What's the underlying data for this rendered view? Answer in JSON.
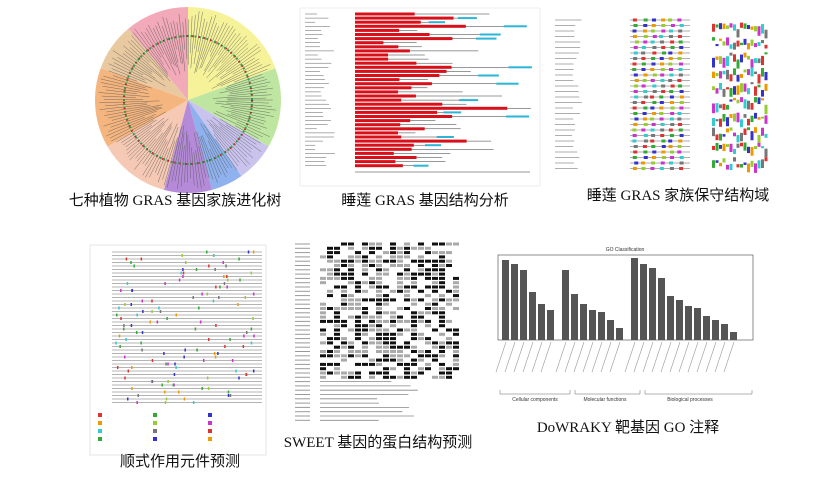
{
  "figures": [
    {
      "caption": "七种植物 GRAS 基因家族进化树"
    },
    {
      "caption": "睡莲 GRAS 基因结构分析"
    },
    {
      "caption": "睡莲 GRAS 家族保守结构域"
    },
    {
      "caption": "顺式作用元件预测"
    },
    {
      "caption": "SWEET 基因的蛋白结构预测"
    },
    {
      "caption": "DoWRAKY 靶基因 GO 注释",
      "chart_title": "GO Classification",
      "groups": [
        "Cellular components",
        "Molecular functions",
        "Biological processes"
      ]
    }
  ]
}
